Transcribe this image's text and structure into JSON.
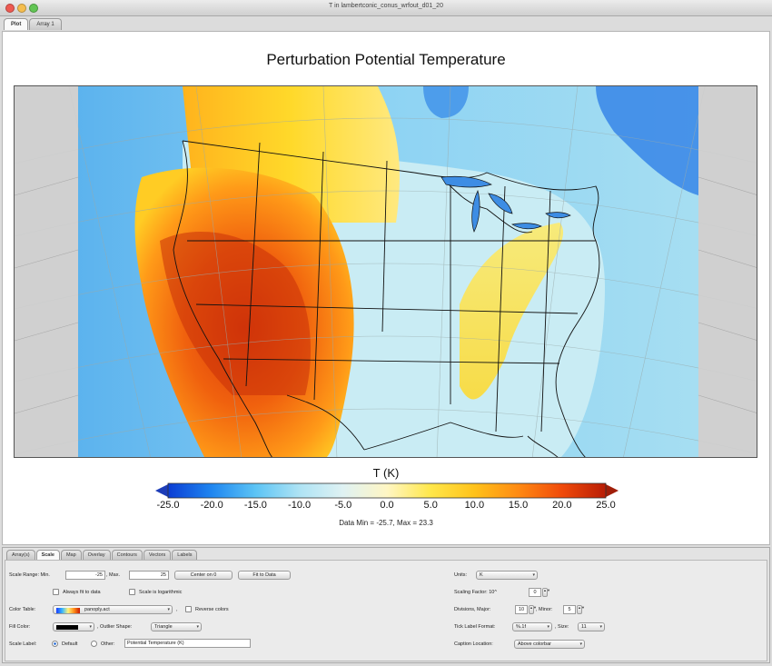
{
  "window": {
    "title": "T in lambertconic_conus_wrfout_d01_20"
  },
  "top_tabs": [
    {
      "label": "Plot"
    },
    {
      "label": "Array 1"
    }
  ],
  "plot": {
    "title": "Perturbation Potential Temperature",
    "colorbar": {
      "title": "T (K)",
      "min": -25.0,
      "max": 25.0,
      "ticks": [
        "-25.0",
        "-20.0",
        "-15.0",
        "-10.0",
        "-5.0",
        "0.0",
        "5.0",
        "10.0",
        "15.0",
        "20.0",
        "25.0"
      ],
      "colors": [
        "#0b3dd4",
        "#1f86f0",
        "#5cc4f5",
        "#aee3f4",
        "#dff2f3",
        "#fff6c4",
        "#ffe74a",
        "#ffc21a",
        "#ff8a12",
        "#f04a0a",
        "#b81d05"
      ],
      "under_color": "#1d3db8",
      "over_color": "#a01e08"
    },
    "data_range": "Data Min = -25.7, Max = 23.3"
  },
  "bottom_tabs": [
    {
      "label": "Array(s)"
    },
    {
      "label": "Scale"
    },
    {
      "label": "Map"
    },
    {
      "label": "Overlay"
    },
    {
      "label": "Contours"
    },
    {
      "label": "Vectors"
    },
    {
      "label": "Labels"
    }
  ],
  "scale": {
    "range_label": "Scale Range: Min.",
    "min_value": "-25",
    "max_label": ", Max.",
    "max_value": "25",
    "center_button": "Center on 0",
    "fit_button": "Fit to Data",
    "always_fit_label": "Always fit to data",
    "log_label": "Scale is logarithmic",
    "color_table_label": "Color Table:",
    "color_table_value": "panoply.act",
    "reverse_label": "Reverse colors",
    "fill_color_label": "Fill Color:",
    "outlier_label": ", Outlier Shape:",
    "outlier_value": "Triangle",
    "scale_label_label": "Scale Label:",
    "default_label": "Default",
    "other_label": "Other:",
    "other_value": "Potential Temperature (K)",
    "units_label": "Units:",
    "units_value": "K",
    "scaling_label": "Scaling Factor: 10^",
    "scaling_value": "0",
    "divisions_label": "Divisions, Major:",
    "major_value": "10",
    "minor_label": ", Minor:",
    "minor_value": "5",
    "tick_format_label": "Tick Label Format:",
    "tick_format_value": "%.1f",
    "size_label": ", Size:",
    "size_value": "11",
    "caption_label": "Caption Location:",
    "caption_value": "Above colorbar"
  }
}
